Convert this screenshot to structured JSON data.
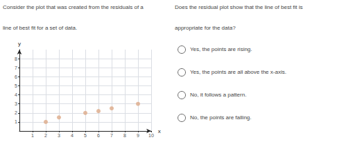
{
  "chart_data": {
    "type": "scatter",
    "annotations": [
      "Consider the plot that was created from the residuals of a",
      "line of best fit for a set of data.",
      "Does the residual plot show that the line of best fit is",
      "appropriate for the data?",
      "Yes, the points are rising.",
      "Yes, the points are all above the x-axis.",
      "No, it follows a pattern.",
      "No, the points are falling."
    ],
    "x": [
      2,
      3,
      5,
      6,
      7,
      9
    ],
    "values": [
      1,
      1.5,
      2,
      2.2,
      2.5,
      3
    ],
    "color": "#DDAA88",
    "xlim": [
      0,
      10
    ],
    "ylim": [
      0,
      9
    ],
    "xticks": [
      1,
      2,
      3,
      4,
      5,
      6,
      7,
      8,
      9,
      10
    ],
    "yticks": [
      1,
      2,
      3,
      4,
      5,
      6,
      7,
      8
    ],
    "xlabel": "x",
    "ylabel": "y",
    "grid": true
  }
}
